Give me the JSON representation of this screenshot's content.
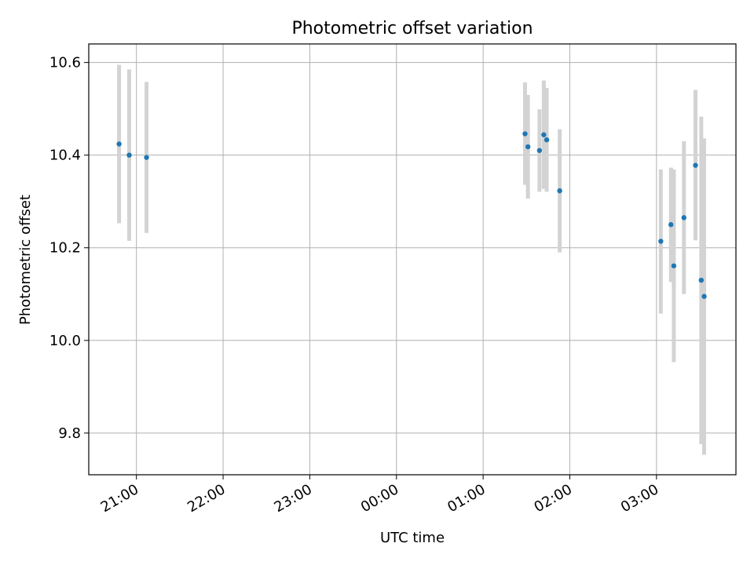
{
  "chart_data": {
    "type": "scatter",
    "title": "Photometric offset variation",
    "xlabel": "UTC time",
    "ylabel": "Photometric offset",
    "x_unit": "hours relative to 00:00 UTC",
    "xlim": [
      "20:27",
      "03:55"
    ],
    "ylim": [
      9.71,
      10.64
    ],
    "grid": true,
    "x_ticks": [
      "21:00",
      "22:00",
      "23:00",
      "00:00",
      "01:00",
      "02:00",
      "03:00"
    ],
    "y_ticks": [
      "9.8",
      "10.0",
      "10.2",
      "10.4",
      "10.6"
    ],
    "colors": {
      "points": "#1f77b4",
      "errorbars": "#d3d3d3",
      "grid": "#b0b0b0"
    },
    "points": [
      {
        "t": "20:48",
        "y": 10.424,
        "ylow": 10.253,
        "yhigh": 10.595
      },
      {
        "t": "20:55",
        "y": 10.4,
        "ylow": 10.215,
        "yhigh": 10.585
      },
      {
        "t": "21:07",
        "y": 10.395,
        "ylow": 10.232,
        "yhigh": 10.558
      },
      {
        "t": "01:29",
        "y": 10.446,
        "ylow": 10.336,
        "yhigh": 10.557
      },
      {
        "t": "01:31",
        "y": 10.418,
        "ylow": 10.306,
        "yhigh": 10.53
      },
      {
        "t": "01:39",
        "y": 10.41,
        "ylow": 10.321,
        "yhigh": 10.499
      },
      {
        "t": "01:42",
        "y": 10.444,
        "ylow": 10.327,
        "yhigh": 10.561
      },
      {
        "t": "01:44",
        "y": 10.433,
        "ylow": 10.321,
        "yhigh": 10.545
      },
      {
        "t": "01:53",
        "y": 10.323,
        "ylow": 10.19,
        "yhigh": 10.456
      },
      {
        "t": "03:03",
        "y": 10.214,
        "ylow": 10.058,
        "yhigh": 10.369
      },
      {
        "t": "03:10",
        "y": 10.25,
        "ylow": 10.126,
        "yhigh": 10.373
      },
      {
        "t": "03:12",
        "y": 10.161,
        "ylow": 9.953,
        "yhigh": 10.369
      },
      {
        "t": "03:19",
        "y": 10.265,
        "ylow": 10.1,
        "yhigh": 10.43
      },
      {
        "t": "03:27",
        "y": 10.378,
        "ylow": 10.216,
        "yhigh": 10.541
      },
      {
        "t": "03:31",
        "y": 10.13,
        "ylow": 9.776,
        "yhigh": 10.483
      },
      {
        "t": "03:33",
        "y": 10.095,
        "ylow": 9.753,
        "yhigh": 10.436
      }
    ]
  }
}
